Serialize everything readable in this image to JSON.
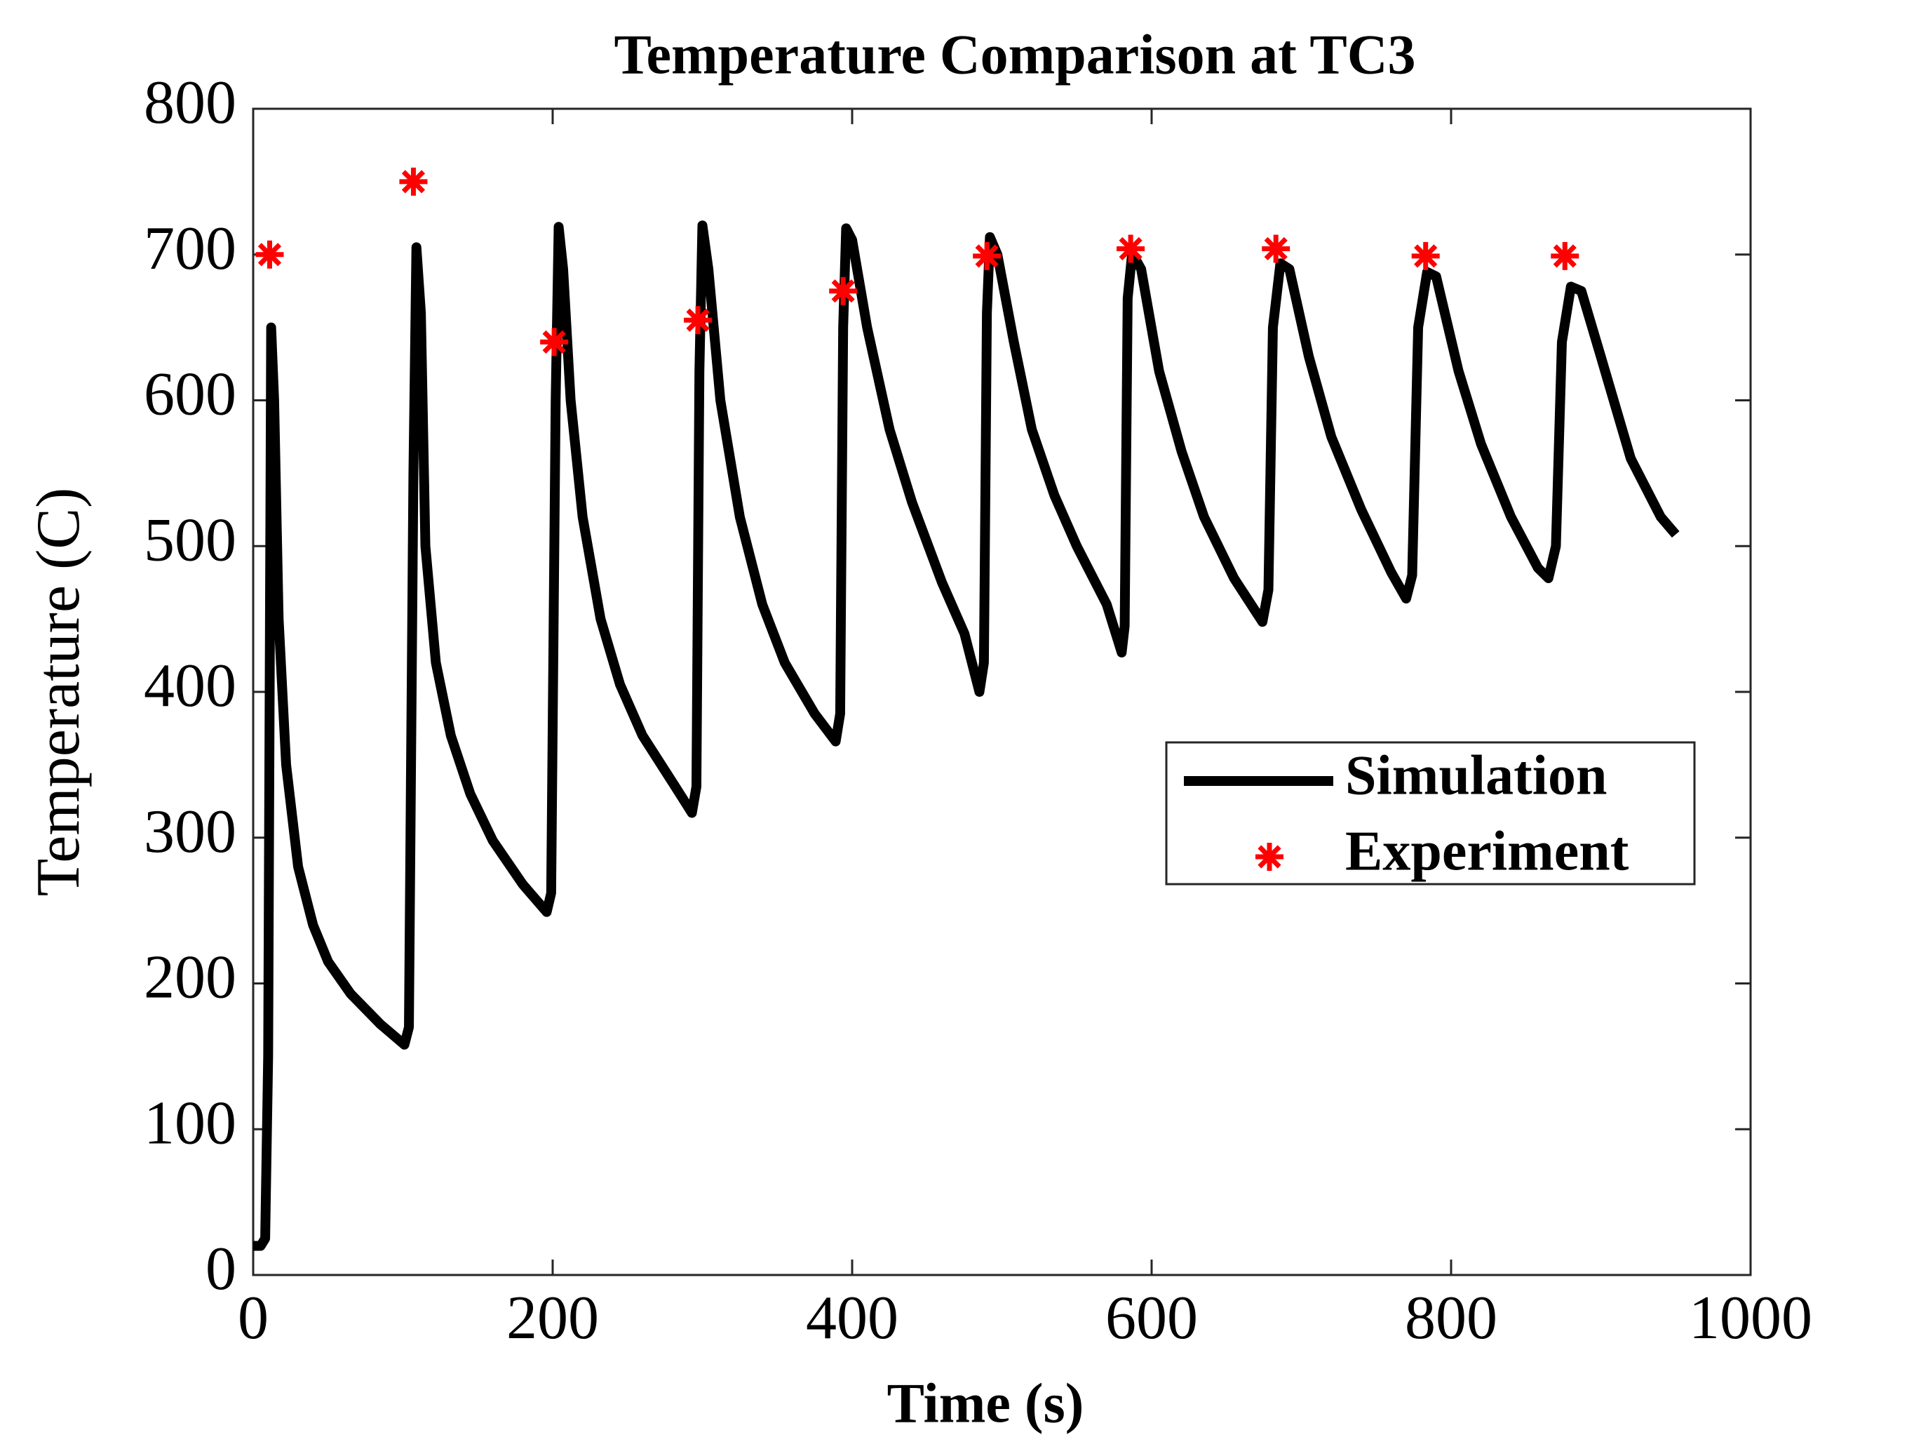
{
  "chart_data": {
    "type": "line",
    "title": "Temperature Comparison at TC3",
    "x_label": "Time (s)",
    "y_label": "Temperature (C)",
    "xlim": [
      0,
      1000
    ],
    "ylim": [
      0,
      800
    ],
    "xticks": [
      0,
      200,
      400,
      600,
      800,
      1000
    ],
    "yticks": [
      0,
      100,
      200,
      300,
      400,
      500,
      600,
      700,
      800
    ],
    "grid": false,
    "legend": "right",
    "series": [
      {
        "name": "Simulation",
        "color": "#000000",
        "mode": "line",
        "x": [
          0,
          5,
          8,
          10,
          12,
          14,
          17,
          22,
          30,
          40,
          50,
          65,
          85,
          101,
          104,
          107,
          109,
          112,
          115,
          122,
          132,
          145,
          160,
          180,
          196,
          199,
          202,
          204,
          207,
          212,
          220,
          232,
          245,
          260,
          280,
          293,
          296,
          298,
          300,
          304,
          312,
          325,
          340,
          355,
          375,
          389,
          392,
          394,
          396,
          400,
          410,
          425,
          440,
          460,
          475,
          485,
          488,
          490,
          492,
          497,
          508,
          520,
          535,
          550,
          570,
          580,
          582,
          584,
          587,
          593,
          605,
          620,
          635,
          655,
          674,
          678,
          681,
          686,
          692,
          705,
          720,
          740,
          760,
          770,
          774,
          778,
          784,
          790,
          805,
          820,
          840,
          858,
          865,
          870,
          874,
          880,
          887,
          900,
          920,
          940,
          950
        ],
        "values": [
          20,
          20,
          25,
          150,
          650,
          600,
          450,
          350,
          280,
          240,
          215,
          193,
          172,
          158,
          170,
          550,
          705,
          660,
          500,
          420,
          370,
          330,
          298,
          268,
          249,
          262,
          600,
          719,
          690,
          600,
          520,
          450,
          405,
          370,
          338,
          317,
          335,
          620,
          720,
          690,
          600,
          520,
          460,
          420,
          385,
          366,
          385,
          650,
          718,
          710,
          650,
          580,
          530,
          475,
          440,
          400,
          420,
          660,
          712,
          700,
          640,
          580,
          535,
          500,
          460,
          427,
          445,
          670,
          701,
          690,
          620,
          565,
          520,
          478,
          448,
          470,
          650,
          694,
          690,
          630,
          575,
          525,
          482,
          464,
          480,
          650,
          688,
          685,
          620,
          570,
          520,
          485,
          478,
          500,
          640,
          678,
          675,
          630,
          560,
          520,
          508
        ]
      },
      {
        "name": "Experiment",
        "color": "#ff0000",
        "mode": "markers",
        "x": [
          11,
          107,
          201,
          297,
          394,
          490,
          586,
          683,
          783,
          876
        ],
        "values": [
          700,
          750,
          640,
          655,
          675,
          699,
          704,
          704,
          699,
          699
        ]
      }
    ]
  }
}
